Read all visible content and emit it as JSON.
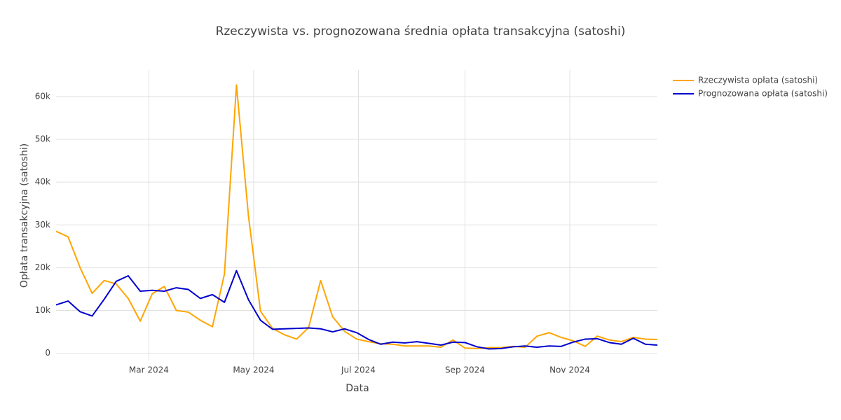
{
  "chart_data": {
    "type": "line",
    "title": "Rzeczywista vs. prognozowana średnia opłata transakcyjna (satoshi)",
    "x_label": "Data",
    "y_label": "Opłata transakcyjna (satoshi)",
    "x": [
      "2024-01-07",
      "2024-01-14",
      "2024-01-21",
      "2024-01-28",
      "2024-02-04",
      "2024-02-11",
      "2024-02-18",
      "2024-02-25",
      "2024-03-03",
      "2024-03-10",
      "2024-03-17",
      "2024-03-24",
      "2024-03-31",
      "2024-04-07",
      "2024-04-14",
      "2024-04-21",
      "2024-04-28",
      "2024-05-05",
      "2024-05-12",
      "2024-05-19",
      "2024-05-26",
      "2024-06-02",
      "2024-06-09",
      "2024-06-16",
      "2024-06-23",
      "2024-06-30",
      "2024-07-07",
      "2024-07-14",
      "2024-07-21",
      "2024-07-28",
      "2024-08-04",
      "2024-08-11",
      "2024-08-18",
      "2024-08-25",
      "2024-09-01",
      "2024-09-08",
      "2024-09-15",
      "2024-09-22",
      "2024-09-29",
      "2024-10-06",
      "2024-10-13",
      "2024-10-20",
      "2024-10-27",
      "2024-11-03",
      "2024-11-10",
      "2024-11-17",
      "2024-11-24",
      "2024-12-01",
      "2024-12-08",
      "2024-12-15",
      "2024-12-22"
    ],
    "series": [
      {
        "name": "Rzeczywista opłata (satoshi)",
        "color": "#FFA500",
        "values": [
          28500,
          27200,
          20000,
          14000,
          17000,
          16200,
          12800,
          7500,
          13900,
          15600,
          10000,
          9600,
          7700,
          6200,
          18500,
          62700,
          32000,
          9800,
          5800,
          4300,
          3300,
          6000,
          17000,
          8500,
          5100,
          3300,
          2700,
          2200,
          2100,
          1700,
          1700,
          1700,
          1400,
          3100,
          1200,
          1100,
          1300,
          1300,
          1600,
          1400,
          4000,
          4800,
          3700,
          2900,
          1600,
          4000,
          3100,
          2700,
          3700,
          3300,
          3200
        ]
      },
      {
        "name": "Prognozowana opłata (satoshi)",
        "color": "#0000CD",
        "values": [
          11300,
          12200,
          9700,
          8700,
          12600,
          16800,
          18100,
          14500,
          14700,
          14500,
          15300,
          14900,
          12800,
          13700,
          11900,
          19300,
          12500,
          7700,
          5600,
          5700,
          5800,
          5900,
          5700,
          5000,
          5700,
          4800,
          3200,
          2100,
          2600,
          2400,
          2700,
          2300,
          1900,
          2600,
          2500,
          1500,
          1000,
          1100,
          1500,
          1700,
          1400,
          1700,
          1600,
          2600,
          3300,
          3400,
          2500,
          2100,
          3500,
          2100,
          1900
        ]
      }
    ],
    "xlim": [
      "2024-01-07",
      "2024-12-22"
    ],
    "xticks": [
      {
        "value": "2024-03-01",
        "label": "Mar 2024"
      },
      {
        "value": "2024-05-01",
        "label": "May 2024"
      },
      {
        "value": "2024-07-01",
        "label": "Jul 2024"
      },
      {
        "value": "2024-09-01",
        "label": "Sep 2024"
      },
      {
        "value": "2024-11-01",
        "label": "Nov 2024"
      }
    ],
    "ylim": [
      -1700,
      66200
    ],
    "yticks": [
      0,
      {
        "value": 10000,
        "label": "10k"
      },
      {
        "value": 20000,
        "label": "20k"
      },
      {
        "value": 30000,
        "label": "30k"
      },
      {
        "value": 40000,
        "label": "40k"
      },
      {
        "value": 50000,
        "label": "50k"
      },
      {
        "value": 60000,
        "label": "60k"
      }
    ],
    "grid": true,
    "legend": "right"
  }
}
